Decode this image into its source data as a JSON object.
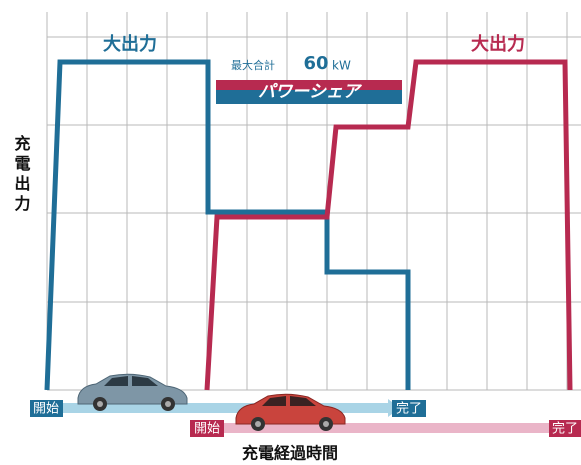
{
  "header": {
    "y_axis_label": "充電出力",
    "x_axis_label": "充電経過時間"
  },
  "annotations": {
    "blue_peak": "大出力",
    "red_peak": "大出力",
    "share_prefix": "最大合計",
    "share_value": "60",
    "share_unit": "kW",
    "share_banner": "パワーシェア"
  },
  "timeline": {
    "blue_start": "開始",
    "blue_end": "完了",
    "red_start": "開始",
    "red_end": "完了"
  }
}
